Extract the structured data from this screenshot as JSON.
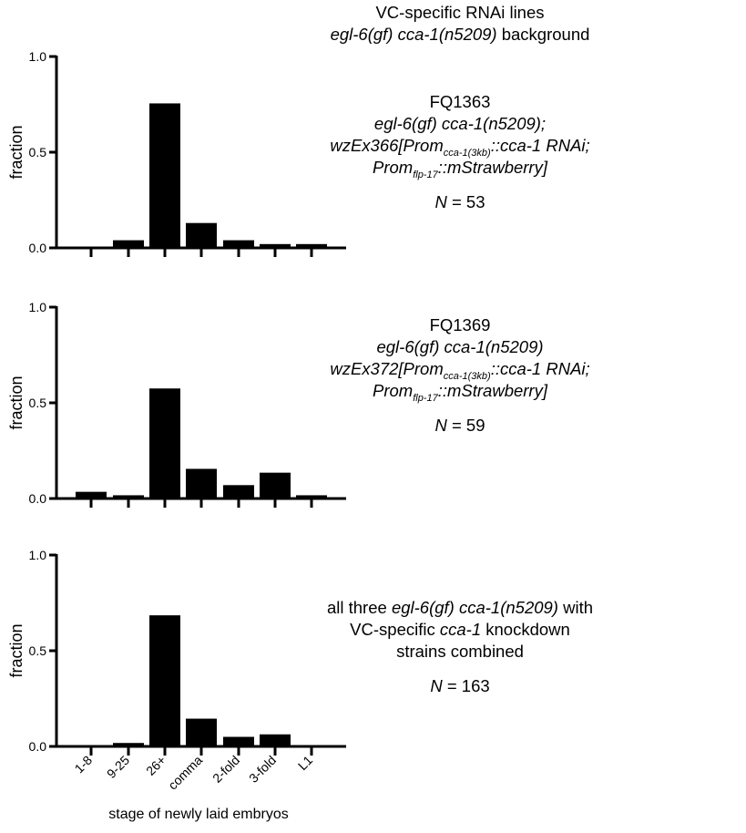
{
  "header": {
    "line1": "VC-specific RNAi lines",
    "line2_italic": "egl-6(gf) cca-1(n5209)",
    "line2_rest": " background"
  },
  "panels": [
    {
      "strain": "FQ1363",
      "genotype": "egl-6(gf) cca-1(n5209);",
      "construct": {
        "prefix": "wzEx366[Prom",
        "sub1": "cca-1(3kb)",
        "mid": "::cca-1 RNAi;",
        "prom2": "Prom",
        "sub2": "flp-17",
        "suffix": "::mStrawberry]"
      },
      "n_label": "N",
      "n_value": " = 53"
    },
    {
      "strain": "FQ1369",
      "genotype": "egl-6(gf) cca-1(n5209)",
      "construct": {
        "prefix": "wzEx372[Prom",
        "sub1": "cca-1(3kb)",
        "mid": "::cca-1 RNAi;",
        "prom2": "Prom",
        "sub2": "flp-17",
        "suffix": "::mStrawberry]"
      },
      "n_label": "N",
      "n_value": " = 59"
    },
    {
      "combined_a": "all three ",
      "combined_b_italic": "egl-6(gf) cca-1(n5209)",
      "combined_c": " with",
      "combined_d": "VC-specific ",
      "combined_e_italic": "cca-1",
      "combined_f": " knockdown",
      "combined_g": "strains combined",
      "n_label": "N",
      "n_value": " = 163"
    }
  ],
  "chart_data": [
    {
      "type": "bar",
      "categories": [
        "1-8",
        "9-25",
        "26+",
        "comma",
        "2-fold",
        "3-fold",
        "L1"
      ],
      "values": [
        0.0,
        0.04,
        0.755,
        0.13,
        0.04,
        0.02,
        0.02
      ],
      "xlabel": "",
      "ylabel": "fraction",
      "ylim": [
        0,
        1.0
      ],
      "yticks": [
        "0.0",
        "0.5",
        "1.0"
      ],
      "grid": false
    },
    {
      "type": "bar",
      "categories": [
        "1-8",
        "9-25",
        "26+",
        "comma",
        "2-fold",
        "3-fold",
        "L1"
      ],
      "values": [
        0.035,
        0.017,
        0.575,
        0.155,
        0.07,
        0.135,
        0.017
      ],
      "xlabel": "",
      "ylabel": "fraction",
      "ylim": [
        0,
        1.0
      ],
      "yticks": [
        "0.0",
        "0.5",
        "1.0"
      ],
      "grid": false
    },
    {
      "type": "bar",
      "categories": [
        "1-8",
        "9-25",
        "26+",
        "comma",
        "2-fold",
        "3-fold",
        "L1"
      ],
      "values": [
        0.006,
        0.018,
        0.685,
        0.145,
        0.05,
        0.063,
        0.006
      ],
      "xlabel": "stage of newly laid embryos",
      "ylabel": "fraction",
      "ylim": [
        0,
        1.0
      ],
      "yticks": [
        "0.0",
        "0.5",
        "1.0"
      ],
      "grid": false,
      "show_category_labels": true
    }
  ]
}
